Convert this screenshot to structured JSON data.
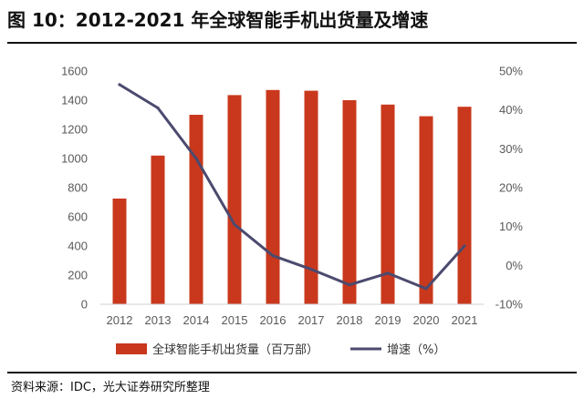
{
  "figure": {
    "title": "图 10：2012-2021 年全球智能手机出货量及增速",
    "source": "资料来源：IDC，光大证券研究所整理"
  },
  "colors": {
    "bar": "#C9381D",
    "line": "#4B4A6E",
    "axis_text": "#595959"
  },
  "chart_data": {
    "type": "bar",
    "categories": [
      "2012",
      "2013",
      "2014",
      "2015",
      "2016",
      "2017",
      "2018",
      "2019",
      "2020",
      "2021"
    ],
    "series": [
      {
        "name": "全球智能手机出货量（百万部）",
        "type": "bar",
        "axis": "left",
        "values": [
          725,
          1020,
          1300,
          1435,
          1470,
          1465,
          1400,
          1370,
          1290,
          1355
        ]
      },
      {
        "name": "增速（%）",
        "type": "line",
        "axis": "right",
        "values": [
          46.5,
          40.5,
          27.5,
          10.5,
          2.5,
          -1.0,
          -5.0,
          -2.0,
          -6.0,
          5.0
        ]
      }
    ],
    "y_left": {
      "min": 0,
      "max": 1600,
      "ticks": [
        "0",
        "200",
        "400",
        "600",
        "800",
        "1000",
        "1200",
        "1400",
        "1600"
      ]
    },
    "y_right": {
      "min": -10,
      "max": 50,
      "ticks": [
        "-10%",
        "0%",
        "10%",
        "20%",
        "30%",
        "40%",
        "50%"
      ]
    },
    "grid": false,
    "legend_position": "bottom"
  }
}
